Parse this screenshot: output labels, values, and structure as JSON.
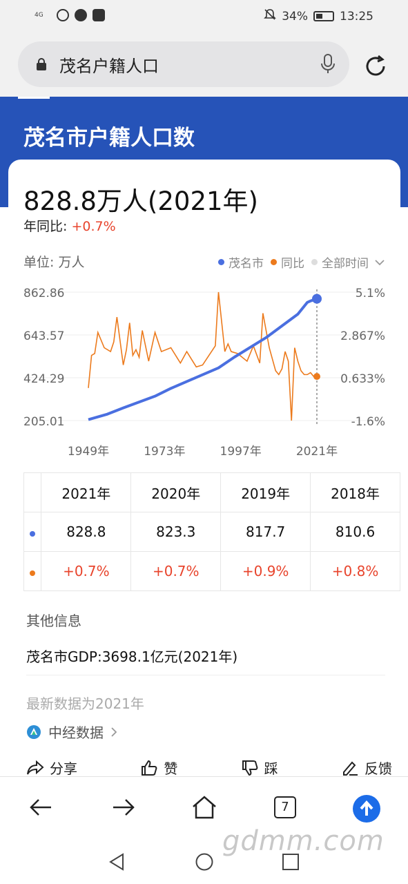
{
  "status_bar": {
    "signal": "4G",
    "battery": "34%",
    "time": "13:25"
  },
  "search": {
    "query": "茂名户籍人口"
  },
  "header": {
    "title": "茂名市户籍人口数"
  },
  "summary": {
    "value": "828.8万人(2021年)",
    "yoy_label": "年同比:",
    "yoy_value": "+0.7%"
  },
  "chart_header": {
    "unit": "单位: 万人",
    "legend_city": "茂名市",
    "legend_yoy": "同比",
    "legend_time": "全部时间"
  },
  "colors": {
    "primary_blue": "#2653b8",
    "series_blue": "#4a6fe0",
    "series_orange": "#ec7a1c",
    "red_text": "#e8442c"
  },
  "chart_data": {
    "type": "line",
    "x_ticks": [
      "1949年",
      "1973年",
      "1997年",
      "2021年"
    ],
    "y_left_ticks": [
      "862.86",
      "643.57",
      "424.29",
      "205.01"
    ],
    "y_right_ticks": [
      "5.1%",
      "2.867%",
      "0.633%",
      "-1.6%"
    ],
    "y_left_range": [
      205.01,
      862.86
    ],
    "y_right_range": [
      -1.6,
      5.1
    ],
    "x_range": [
      1949,
      2021
    ],
    "series": [
      {
        "name": "茂名市",
        "axis": "left",
        "x": [
          1949,
          1955,
          1960,
          1965,
          1970,
          1975,
          1980,
          1985,
          1990,
          1995,
          2000,
          2005,
          2010,
          2015,
          2018,
          2019,
          2020,
          2021
        ],
        "values": [
          210,
          238,
          270,
          300,
          330,
          370,
          405,
          440,
          475,
          530,
          580,
          630,
          690,
          750,
          810.6,
          817.7,
          823.3,
          828.8
        ]
      },
      {
        "name": "同比",
        "axis": "right",
        "x": [
          1949,
          1950,
          1951,
          1952,
          1954,
          1956,
          1957,
          1958,
          1960,
          1961,
          1962,
          1963,
          1964,
          1965,
          1966,
          1968,
          1970,
          1972,
          1975,
          1978,
          1980,
          1983,
          1985,
          1987,
          1989,
          1990,
          1992,
          1993,
          1994,
          1996,
          1999,
          2001,
          2003,
          2004,
          2006,
          2008,
          2009,
          2010,
          2011,
          2012,
          2013,
          2014,
          2015,
          2016,
          2017,
          2018,
          2019,
          2020,
          2021
        ],
        "values": [
          0.1,
          1.8,
          1.9,
          3.0,
          2.2,
          2.0,
          2.5,
          3.8,
          1.3,
          2.1,
          3.5,
          1.8,
          2.1,
          1.7,
          3.1,
          1.5,
          3.0,
          2.0,
          2.2,
          1.4,
          2.0,
          1.2,
          1.3,
          1.8,
          2.3,
          5.1,
          2.0,
          2.4,
          2.0,
          1.9,
          1.5,
          2.3,
          1.4,
          4.0,
          2.2,
          1.0,
          0.8,
          1.1,
          2.0,
          1.5,
          -1.6,
          2.2,
          1.5,
          1.0,
          0.8,
          0.8,
          0.9,
          0.7,
          0.7
        ]
      }
    ]
  },
  "table": {
    "years": [
      "2021年",
      "2020年",
      "2019年",
      "2018年"
    ],
    "population": [
      "828.8",
      "823.3",
      "817.7",
      "810.6"
    ],
    "yoy": [
      "+0.7%",
      "+0.7%",
      "+0.9%",
      "+0.8%"
    ]
  },
  "other": {
    "title": "其他信息",
    "gdp": "茂名市GDP:3698.1亿元(2021年)",
    "latest": "最新数据为2021年",
    "source": "中经数据"
  },
  "actions": {
    "share": "分享",
    "like": "赞",
    "dislike": "踩",
    "feedback": "反馈"
  },
  "bottom_nav": {
    "tab_count": "7"
  },
  "watermark": "gdmm.com"
}
